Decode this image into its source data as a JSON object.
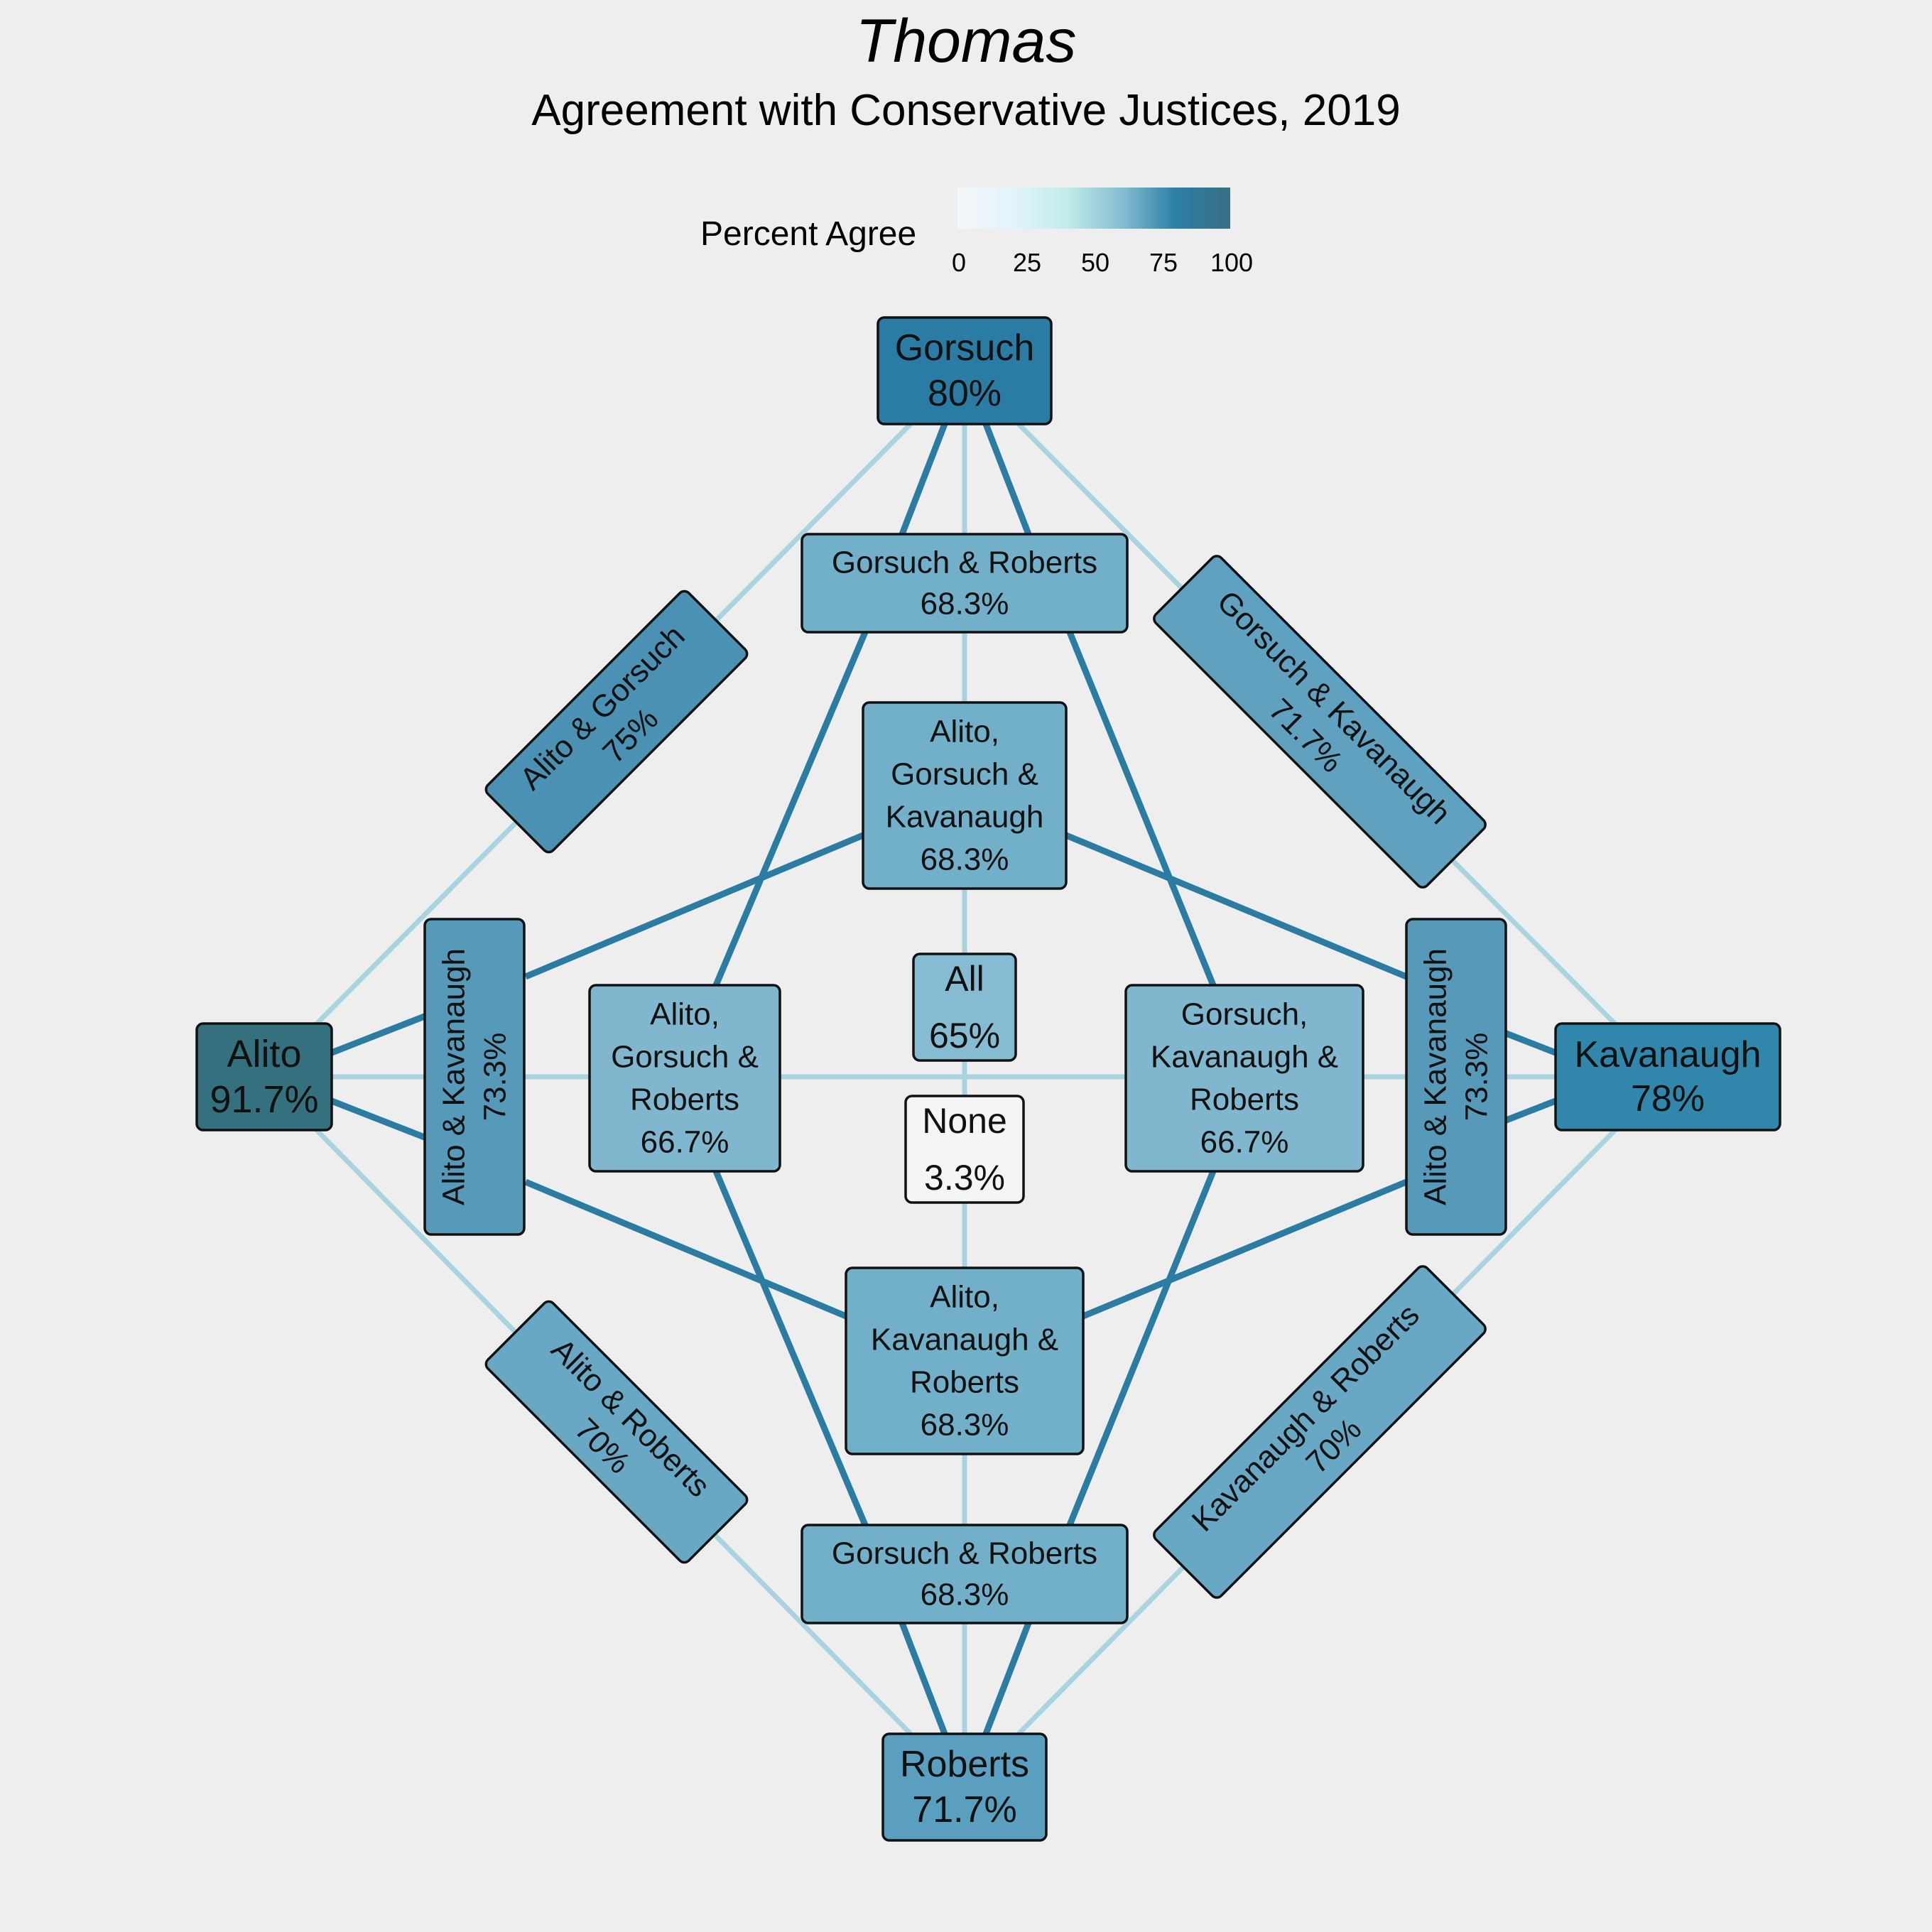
{
  "title": "Thomas",
  "subtitle": "Agreement with Conservative Justices, 2019",
  "legend": {
    "title": "Percent Agree",
    "ticks": [
      "0",
      "25",
      "50",
      "75",
      "100"
    ],
    "gradient_colors": [
      "#f4f6f8",
      "#e2f4fb",
      "#c2ece9",
      "#86bed2",
      "#2b7fa5",
      "#3a6f84"
    ]
  },
  "colors": {
    "strong_edge": "#2a7ca3",
    "light_edge": "#a8d4e0",
    "background": "#eeeeee"
  },
  "nodes": [
    {
      "id": "gorsuch",
      "lines": [
        "Gorsuch",
        "80%"
      ],
      "value": 80,
      "color": "#2a7ca5"
    },
    {
      "id": "alito",
      "lines": [
        "Alito",
        "91.7%"
      ],
      "value": 91.7,
      "color": "#35707f"
    },
    {
      "id": "kavanaugh",
      "lines": [
        "Kavanaugh",
        "78%"
      ],
      "value": 78,
      "color": "#3187ab"
    },
    {
      "id": "roberts",
      "lines": [
        "Roberts",
        "71.7%"
      ],
      "value": 71.7,
      "color": "#5a9fbf"
    },
    {
      "id": "gorsuch-roberts-top",
      "lines": [
        "Gorsuch & Roberts",
        "68.3%"
      ],
      "value": 68.3,
      "color": "#72afc8"
    },
    {
      "id": "gorsuch-roberts-bottom",
      "lines": [
        "Gorsuch & Roberts",
        "68.3%"
      ],
      "value": 68.3,
      "color": "#72afc8"
    },
    {
      "id": "alito-gorsuch",
      "lines": [
        "Alito & Gorsuch",
        "75%"
      ],
      "value": 75,
      "color": "#4b91b3"
    },
    {
      "id": "gorsuch-kavanaugh",
      "lines": [
        "Gorsuch & Kavanaugh",
        "71.7%"
      ],
      "value": 71.7,
      "color": "#60a1c0"
    },
    {
      "id": "alito-roberts",
      "lines": [
        "Alito & Roberts",
        "70%"
      ],
      "value": 70,
      "color": "#68a8c5"
    },
    {
      "id": "kavanaugh-roberts",
      "lines": [
        "Kavanaugh & Roberts",
        "70%"
      ],
      "value": 70,
      "color": "#68a8c5"
    },
    {
      "id": "alito-kavanaugh-left",
      "lines": [
        "Alito & Kavanaugh",
        "73.3%"
      ],
      "value": 73.3,
      "color": "#5699b9"
    },
    {
      "id": "alito-kavanaugh-right",
      "lines": [
        "Alito & Kavanaugh",
        "73.3%"
      ],
      "value": 73.3,
      "color": "#5699b9"
    },
    {
      "id": "alito-gorsuch-kavanaugh",
      "lines": [
        "Alito,",
        "Gorsuch &",
        "Kavanaugh",
        "68.3%"
      ],
      "value": 68.3,
      "color": "#72afc8"
    },
    {
      "id": "alito-gorsuch-roberts",
      "lines": [
        "Alito,",
        "Gorsuch &",
        "Roberts",
        "66.7%"
      ],
      "value": 66.7,
      "color": "#80b7ce"
    },
    {
      "id": "gorsuch-kavanaugh-roberts",
      "lines": [
        "Gorsuch,",
        "Kavanaugh &",
        "Roberts",
        "66.7%"
      ],
      "value": 66.7,
      "color": "#80b7ce"
    },
    {
      "id": "alito-kavanaugh-roberts",
      "lines": [
        "Alito,",
        "Kavanaugh &",
        "Roberts",
        "68.3%"
      ],
      "value": 68.3,
      "color": "#72afc8"
    },
    {
      "id": "all",
      "lines": [
        "All",
        "65%"
      ],
      "value": 65,
      "color": "#86bcd2"
    },
    {
      "id": "none",
      "lines": [
        "None",
        "3.3%"
      ],
      "value": 3.3,
      "color": "#f3f5f7"
    }
  ]
}
